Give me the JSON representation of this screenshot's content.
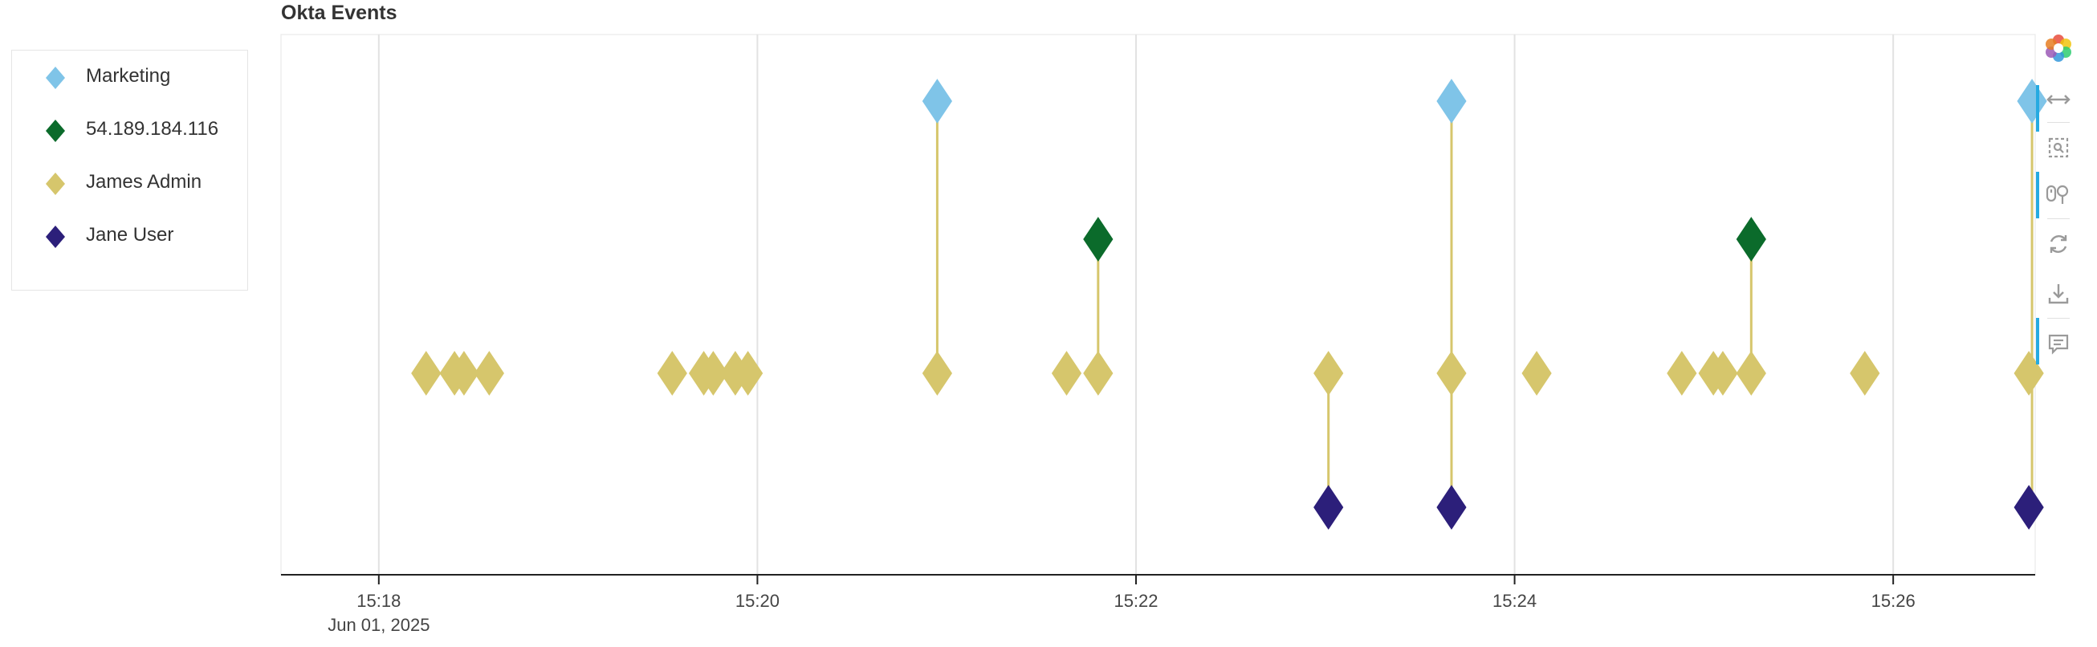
{
  "title": "Okta Events",
  "legend": {
    "items": [
      {
        "label": "Marketing",
        "color": "#7fc4e8"
      },
      {
        "label": "54.189.184.116",
        "color": "#0b6b2b"
      },
      {
        "label": "James Admin",
        "color": "#d6c66c"
      },
      {
        "label": "Jane User",
        "color": "#2c1f7a"
      }
    ]
  },
  "toolbar": {
    "tools": [
      {
        "name": "bokeh-logo-icon",
        "active": false
      },
      {
        "name": "pan-icon",
        "active": true
      },
      {
        "name": "box-zoom-icon",
        "active": false
      },
      {
        "name": "wheel-zoom-icon",
        "active": true
      },
      {
        "name": "reset-icon",
        "active": false
      },
      {
        "name": "save-icon",
        "active": false
      },
      {
        "name": "hover-icon",
        "active": true
      }
    ]
  },
  "chart_data": {
    "type": "scatter",
    "title": "Okta Events",
    "marker": "diamond",
    "x_axis": {
      "type": "datetime",
      "range": [
        "15:17:29",
        "15:26:45"
      ],
      "ticks": [
        "15:18",
        "15:20",
        "15:22",
        "15:24",
        "15:26"
      ],
      "date_label": "Jun 01, 2025"
    },
    "y_axis": {
      "visible": false,
      "categories": [
        "Jane User",
        "James Admin",
        "54.189.184.116",
        "Marketing"
      ]
    },
    "grid": "vertical",
    "legend_position": "left",
    "series": [
      {
        "name": "Marketing",
        "color": "#7fc4e8",
        "points": [
          [
            "15:20:57",
            "Marketing"
          ],
          [
            "15:23:40",
            "Marketing"
          ],
          [
            "15:26:44",
            "Marketing"
          ]
        ]
      },
      {
        "name": "54.189.184.116",
        "color": "#0b6b2b",
        "points": [
          [
            "15:21:48",
            "54.189.184.116"
          ],
          [
            "15:25:15",
            "54.189.184.116"
          ]
        ]
      },
      {
        "name": "James Admin",
        "color": "#d6c66c",
        "points": [
          [
            "15:18:15",
            "James Admin"
          ],
          [
            "15:18:24",
            "James Admin"
          ],
          [
            "15:18:27",
            "James Admin"
          ],
          [
            "15:18:35",
            "James Admin"
          ],
          [
            "15:19:33",
            "James Admin"
          ],
          [
            "15:19:43",
            "James Admin"
          ],
          [
            "15:19:46",
            "James Admin"
          ],
          [
            "15:19:53",
            "James Admin"
          ],
          [
            "15:19:57",
            "James Admin"
          ],
          [
            "15:20:57",
            "James Admin"
          ],
          [
            "15:21:38",
            "James Admin"
          ],
          [
            "15:21:48",
            "James Admin"
          ],
          [
            "15:23:01",
            "James Admin"
          ],
          [
            "15:23:40",
            "James Admin"
          ],
          [
            "15:24:07",
            "James Admin"
          ],
          [
            "15:24:53",
            "James Admin"
          ],
          [
            "15:25:03",
            "James Admin"
          ],
          [
            "15:25:06",
            "James Admin"
          ],
          [
            "15:25:15",
            "James Admin"
          ],
          [
            "15:25:51",
            "James Admin"
          ],
          [
            "15:26:43",
            "James Admin"
          ]
        ]
      },
      {
        "name": "Jane User",
        "color": "#2c1f7a",
        "points": [
          [
            "15:23:01",
            "Jane User"
          ],
          [
            "15:23:40",
            "Jane User"
          ],
          [
            "15:26:43",
            "Jane User"
          ]
        ]
      }
    ],
    "connectors": {
      "color": "#d6c66c",
      "links": [
        {
          "time": "15:20:57",
          "from": "Marketing",
          "to": "James Admin"
        },
        {
          "time": "15:21:48",
          "from": "54.189.184.116",
          "to": "James Admin"
        },
        {
          "time": "15:23:01",
          "from": "James Admin",
          "to": "Jane User"
        },
        {
          "time": "15:23:40",
          "from": "Marketing",
          "to": "Jane User"
        },
        {
          "time": "15:25:15",
          "from": "54.189.184.116",
          "to": "James Admin"
        },
        {
          "time": "15:26:44",
          "from": "Marketing",
          "to": "Jane User"
        }
      ]
    }
  }
}
